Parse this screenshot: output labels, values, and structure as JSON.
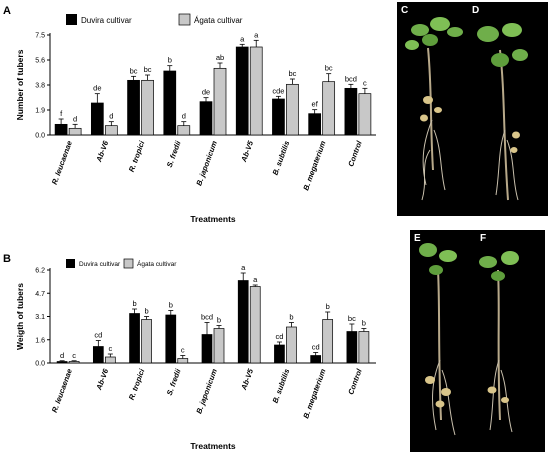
{
  "panel_labels": {
    "chart_a": "A",
    "chart_b": "B"
  },
  "photo_labels": [
    "C",
    "D",
    "E",
    "F"
  ],
  "legend": {
    "series1": "Duvira cultivar",
    "series2": "Ágata cultivar"
  },
  "colors": {
    "series1": "#000000",
    "series2": "#c8c8c8",
    "photo_bg": "#000000",
    "plant_leaf": "#6fae4a",
    "tuber": "#d9c58a",
    "root": "#c9c0ad"
  },
  "chart_data": [
    {
      "type": "bar",
      "title": "",
      "xlabel": "Treatments",
      "ylabel": "Number of tubers",
      "ylim": [
        0,
        7.5
      ],
      "yticks": [
        "0.0",
        "1.9",
        "3.8",
        "5.6",
        "7.5"
      ],
      "grid": false,
      "legend_position": "top",
      "categories": [
        "R. leucaenae",
        "Ab-V6",
        "R. tropici",
        "S. fredii",
        "B. japonicum",
        "Ab-V5",
        "B. subtilis",
        "B. megaterium",
        "Control"
      ],
      "series": [
        {
          "name": "Duvira cultivar",
          "values": [
            0.8,
            2.4,
            4.1,
            4.8,
            2.5,
            6.6,
            2.7,
            1.6,
            3.5
          ],
          "errors": [
            0.4,
            0.7,
            0.3,
            0.4,
            0.3,
            0.2,
            0.2,
            0.3,
            0.3
          ],
          "letters": [
            "f",
            "de",
            "bc",
            "b",
            "de",
            "a",
            "cde",
            "ef",
            "bcd"
          ]
        },
        {
          "name": "Ágata cultivar",
          "values": [
            0.5,
            0.7,
            4.1,
            0.7,
            5.0,
            6.6,
            3.8,
            4.0,
            3.1
          ],
          "errors": [
            0.3,
            0.3,
            0.4,
            0.3,
            0.4,
            0.5,
            0.4,
            0.6,
            0.4
          ],
          "letters": [
            "d",
            "d",
            "bc",
            "d",
            "ab",
            "a",
            "bc",
            "bc",
            "c"
          ]
        }
      ]
    },
    {
      "type": "bar",
      "title": "",
      "xlabel": "Treatments",
      "ylabel": "Weigth of tubers",
      "ylim": [
        0,
        6.2
      ],
      "yticks": [
        "0.0",
        "1.6",
        "3.1",
        "4.7",
        "6.2"
      ],
      "grid": false,
      "legend_position": "top",
      "categories": [
        "R. leucaenae",
        "Ab-V6",
        "R. tropici",
        "S. fredii",
        "B. japonicum",
        "Ab-V5",
        "B. subtilis",
        "B. megaterium",
        "Control"
      ],
      "series": [
        {
          "name": "Duvira cultivar",
          "values": [
            0.1,
            1.1,
            3.3,
            3.2,
            1.9,
            5.5,
            1.2,
            0.5,
            2.1
          ],
          "errors": [
            0.05,
            0.4,
            0.3,
            0.3,
            0.8,
            0.5,
            0.2,
            0.2,
            0.5
          ],
          "letters": [
            "d",
            "cd",
            "b",
            "b",
            "bcd",
            "a",
            "cd",
            "cd",
            "bc"
          ]
        },
        {
          "name": "Ágata cultivar",
          "values": [
            0.1,
            0.4,
            2.9,
            0.3,
            2.3,
            5.1,
            2.4,
            2.9,
            2.1
          ],
          "errors": [
            0.05,
            0.2,
            0.2,
            0.2,
            0.2,
            0.1,
            0.3,
            0.5,
            0.2
          ],
          "letters": [
            "c",
            "c",
            "b",
            "c",
            "b",
            "a",
            "b",
            "b",
            "b"
          ]
        }
      ]
    }
  ]
}
